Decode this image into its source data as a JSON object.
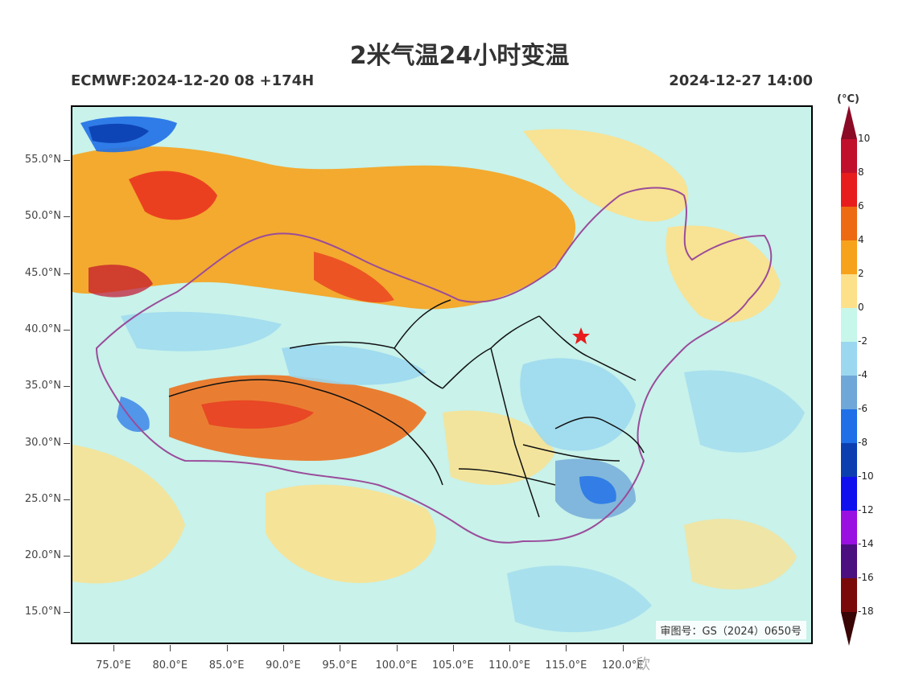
{
  "title": "2米气温24小时变温",
  "model_run": "ECMWF:2024-12-20 08 +174H",
  "valid_time": "2024-12-27 14:00",
  "approval_number": "审图号：GS（2024）0650号",
  "watermark": "欣",
  "colorbar": {
    "unit": "(°C)",
    "levels": [
      "10",
      "8",
      "6",
      "4",
      "2",
      "0",
      "-2",
      "-4",
      "-6",
      "-8",
      "-10",
      "-12",
      "-14",
      "-16",
      "-18"
    ],
    "colors": [
      "#8b0a25",
      "#c0102c",
      "#e81c1c",
      "#ee6a12",
      "#f7a21b",
      "#fde08a",
      "#c7f7ea",
      "#9bd8f0",
      "#6fa8d8",
      "#1e6fe8",
      "#0b3fb0",
      "#1010ee",
      "#9a10e0",
      "#4b0f7f",
      "#7a0a0a",
      "#3a0505"
    ]
  },
  "lat_labels": [
    "55.0°N",
    "50.0°N",
    "45.0°N",
    "40.0°N",
    "35.0°N",
    "30.0°N",
    "25.0°N",
    "20.0°N",
    "15.0°N"
  ],
  "lon_labels": [
    "75.0°E",
    "80.0°E",
    "85.0°E",
    "90.0°E",
    "95.0°E",
    "100.0°E",
    "105.0°E",
    "110.0°E",
    "115.0°E",
    "120.0°E"
  ]
}
